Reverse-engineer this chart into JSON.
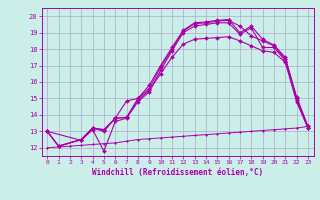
{
  "xlabel": "Windchill (Refroidissement éolien,°C)",
  "bg_color": "#cceee8",
  "grid_color": "#aaaacc",
  "line_color": "#aa00aa",
  "xlim": [
    -0.5,
    23.5
  ],
  "ylim": [
    11.5,
    20.5
  ],
  "xticks": [
    0,
    1,
    2,
    3,
    4,
    5,
    6,
    7,
    8,
    9,
    10,
    11,
    12,
    13,
    14,
    15,
    16,
    17,
    18,
    19,
    20,
    21,
    22,
    23
  ],
  "yticks": [
    12,
    13,
    14,
    15,
    16,
    17,
    18,
    19,
    20
  ],
  "series1": [
    [
      0,
      13.0
    ],
    [
      1,
      12.1
    ],
    [
      3,
      12.5
    ],
    [
      4,
      13.2
    ],
    [
      5,
      13.1
    ],
    [
      6,
      13.8
    ],
    [
      7,
      13.85
    ],
    [
      8,
      15.0
    ],
    [
      9,
      15.8
    ],
    [
      10,
      17.0
    ],
    [
      11,
      18.1
    ],
    [
      12,
      19.15
    ],
    [
      13,
      19.6
    ],
    [
      14,
      19.65
    ],
    [
      15,
      19.75
    ],
    [
      16,
      19.8
    ],
    [
      17,
      19.0
    ],
    [
      18,
      19.4
    ],
    [
      19,
      18.6
    ],
    [
      20,
      18.25
    ],
    [
      21,
      17.5
    ],
    [
      22,
      15.1
    ],
    [
      23,
      13.3
    ]
  ],
  "series2": [
    [
      0,
      13.0
    ],
    [
      1,
      12.1
    ],
    [
      3,
      12.5
    ],
    [
      4,
      13.2
    ],
    [
      5,
      13.0
    ],
    [
      6,
      13.8
    ],
    [
      7,
      14.85
    ],
    [
      8,
      15.0
    ],
    [
      9,
      15.6
    ],
    [
      10,
      16.9
    ],
    [
      11,
      18.0
    ],
    [
      12,
      19.1
    ],
    [
      13,
      19.55
    ],
    [
      14,
      19.6
    ],
    [
      15,
      19.7
    ],
    [
      16,
      19.75
    ],
    [
      17,
      19.4
    ],
    [
      18,
      18.8
    ],
    [
      19,
      18.5
    ],
    [
      20,
      18.2
    ],
    [
      21,
      17.4
    ],
    [
      22,
      15.0
    ],
    [
      23,
      13.3
    ]
  ],
  "series3": [
    [
      0,
      13.0
    ],
    [
      3,
      12.45
    ],
    [
      4,
      13.1
    ],
    [
      5,
      11.8
    ],
    [
      6,
      13.6
    ],
    [
      7,
      13.8
    ],
    [
      8,
      14.8
    ],
    [
      9,
      15.4
    ],
    [
      10,
      16.7
    ],
    [
      11,
      17.9
    ],
    [
      12,
      19.0
    ],
    [
      13,
      19.4
    ],
    [
      14,
      19.5
    ],
    [
      15,
      19.6
    ],
    [
      16,
      19.6
    ],
    [
      17,
      18.9
    ],
    [
      18,
      19.3
    ],
    [
      19,
      18.1
    ],
    [
      20,
      18.1
    ],
    [
      21,
      17.3
    ],
    [
      22,
      14.9
    ],
    [
      23,
      13.2
    ]
  ],
  "series4": [
    [
      0,
      13.0
    ],
    [
      1,
      12.1
    ],
    [
      3,
      12.5
    ],
    [
      4,
      13.2
    ],
    [
      5,
      13.1
    ],
    [
      6,
      13.8
    ],
    [
      7,
      13.85
    ],
    [
      8,
      14.9
    ],
    [
      9,
      15.5
    ],
    [
      10,
      16.5
    ],
    [
      11,
      17.5
    ],
    [
      12,
      18.3
    ],
    [
      13,
      18.6
    ],
    [
      14,
      18.65
    ],
    [
      15,
      18.7
    ],
    [
      16,
      18.75
    ],
    [
      17,
      18.5
    ],
    [
      18,
      18.2
    ],
    [
      19,
      17.9
    ],
    [
      20,
      17.8
    ],
    [
      21,
      17.2
    ],
    [
      22,
      14.8
    ],
    [
      23,
      13.2
    ]
  ],
  "series5": [
    [
      0,
      12.0
    ],
    [
      1,
      12.05
    ],
    [
      2,
      12.1
    ],
    [
      3,
      12.15
    ],
    [
      4,
      12.2
    ],
    [
      5,
      12.25
    ],
    [
      6,
      12.3
    ],
    [
      7,
      12.4
    ],
    [
      8,
      12.5
    ],
    [
      9,
      12.55
    ],
    [
      10,
      12.6
    ],
    [
      11,
      12.65
    ],
    [
      12,
      12.7
    ],
    [
      13,
      12.75
    ],
    [
      14,
      12.8
    ],
    [
      15,
      12.85
    ],
    [
      16,
      12.9
    ],
    [
      17,
      12.95
    ],
    [
      18,
      13.0
    ],
    [
      19,
      13.05
    ],
    [
      20,
      13.1
    ],
    [
      21,
      13.15
    ],
    [
      22,
      13.2
    ],
    [
      23,
      13.3
    ]
  ]
}
